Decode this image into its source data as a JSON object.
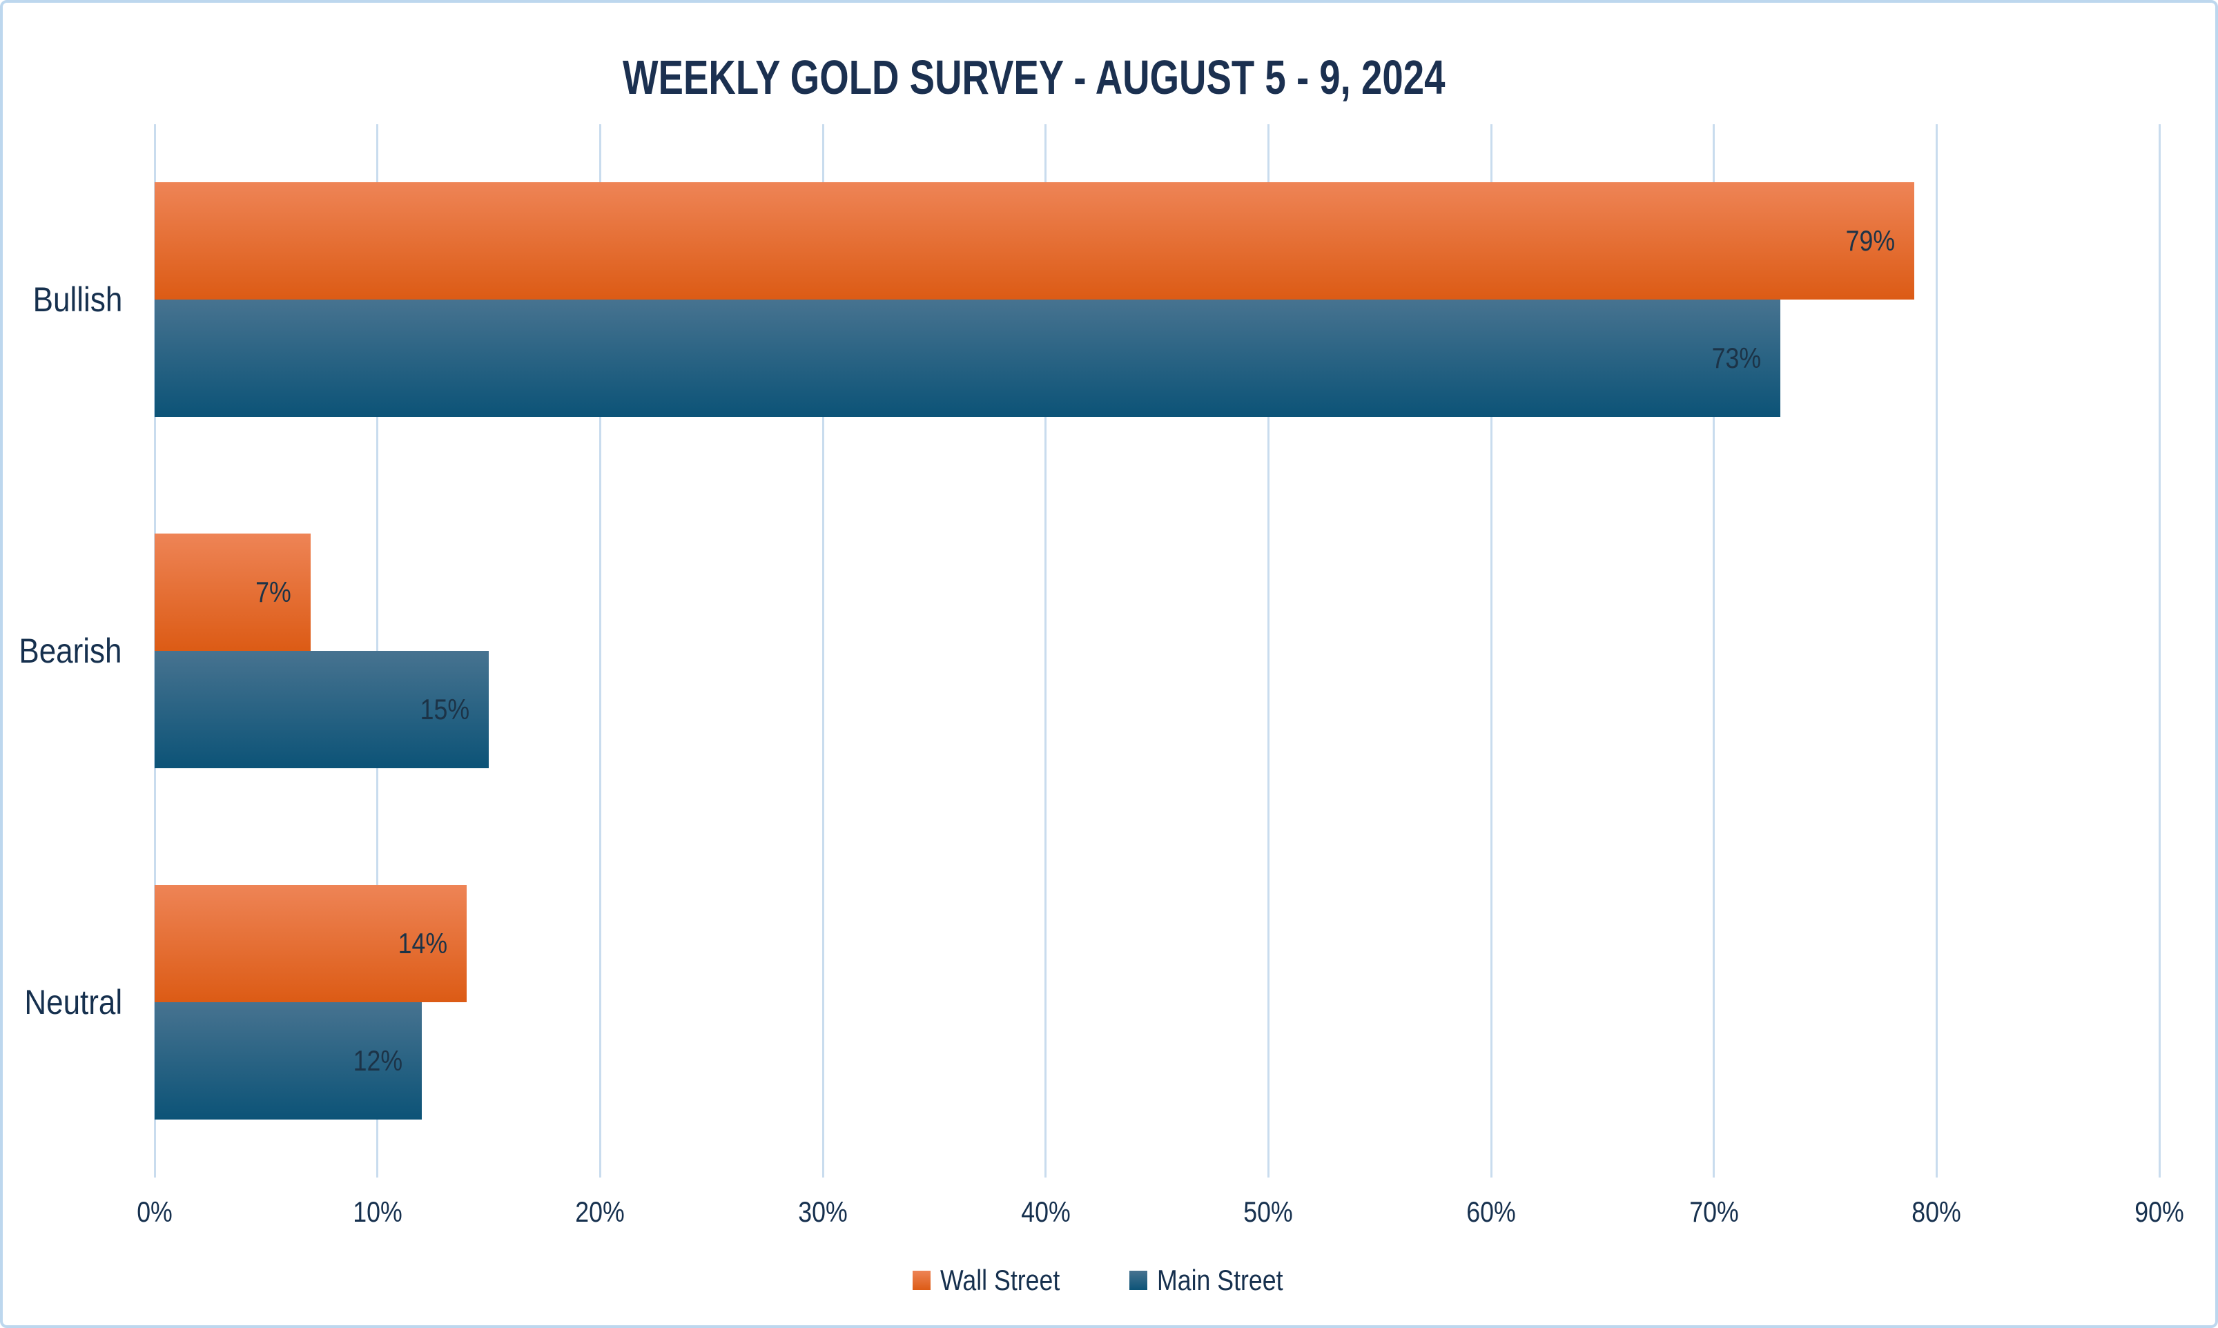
{
  "chart_data": {
    "type": "bar",
    "orientation": "horizontal",
    "title": "WEEKLY GOLD SURVEY - AUGUST 5 - 9, 2024",
    "categories": [
      "Bullish",
      "Bearish",
      "Neutral"
    ],
    "series": [
      {
        "name": "Wall Street",
        "values": [
          79,
          7,
          14
        ],
        "labels": [
          "79%",
          "7%",
          "14%"
        ],
        "color_top": "#EE8456",
        "color_bottom": "#DC5B15"
      },
      {
        "name": "Main Street",
        "values": [
          73,
          15,
          12
        ],
        "labels": [
          "73%",
          "15%",
          "12%"
        ],
        "color_top": "#477390",
        "color_bottom": "#0C5377"
      }
    ],
    "x_ticks": [
      {
        "value": 0,
        "label": "0%"
      },
      {
        "value": 10,
        "label": "10%"
      },
      {
        "value": 20,
        "label": "20%"
      },
      {
        "value": 30,
        "label": "30%"
      },
      {
        "value": 40,
        "label": "40%"
      },
      {
        "value": 50,
        "label": "50%"
      },
      {
        "value": 60,
        "label": "60%"
      },
      {
        "value": 70,
        "label": "70%"
      },
      {
        "value": 80,
        "label": "80%"
      },
      {
        "value": 90,
        "label": "90%"
      }
    ],
    "xlim": [
      0,
      90
    ],
    "grid": "vertical",
    "legend_position": "bottom-center",
    "colors": {
      "title_text": "#1B3050",
      "axis_text": "#16304E",
      "value_label_text": "#1C3347",
      "gridline": "#C9DCEE",
      "border": "#BDD7EE",
      "background": "#FFFFFF"
    }
  }
}
